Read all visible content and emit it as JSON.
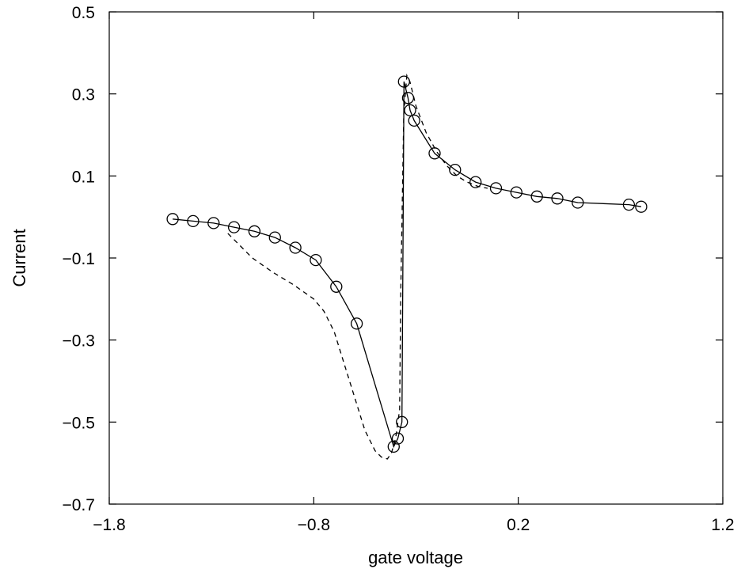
{
  "chart_data": {
    "type": "line",
    "title": "",
    "xlabel": "gate voltage",
    "ylabel": "Current",
    "xlim": [
      -1.8,
      1.2
    ],
    "ylim": [
      -0.7,
      0.5
    ],
    "xticks": [
      "−1.8",
      "−0.8",
      "0.2",
      "1.2"
    ],
    "yticks": [
      "0.5",
      "0.3",
      "0.1",
      "−0.1",
      "−0.3",
      "−0.5",
      "−0.7"
    ],
    "xtick_values": [
      -1.8,
      -0.8,
      0.2,
      1.2
    ],
    "ytick_values": [
      0.5,
      0.3,
      0.1,
      -0.1,
      -0.3,
      -0.5,
      -0.7
    ],
    "grid": false,
    "legend": "none",
    "series": [
      {
        "style": "solid-with-circles",
        "color": "#000000",
        "x": [
          -1.49,
          -1.39,
          -1.29,
          -1.19,
          -1.09,
          -0.99,
          -0.89,
          -0.79,
          -0.69,
          -0.59,
          -0.409,
          -0.389,
          -0.369,
          -0.359,
          -0.339,
          -0.329,
          -0.309,
          -0.209,
          -0.109,
          -0.009,
          0.091,
          0.191,
          0.291,
          0.391,
          0.491,
          0.741,
          0.801
        ],
        "y": [
          -0.005,
          -0.01,
          -0.015,
          -0.025,
          -0.035,
          -0.05,
          -0.075,
          -0.105,
          -0.17,
          -0.26,
          -0.56,
          -0.54,
          -0.5,
          0.33,
          0.29,
          0.26,
          0.235,
          0.155,
          0.115,
          0.085,
          0.07,
          0.06,
          0.05,
          0.045,
          0.035,
          0.03,
          0.025
        ]
      },
      {
        "style": "dashed",
        "color": "#000000",
        "x": [
          -1.22,
          -1.1,
          -1.0,
          -0.9,
          -0.8,
          -0.75,
          -0.7,
          -0.65,
          -0.6,
          -0.55,
          -0.5,
          -0.47,
          -0.44,
          -0.42,
          -0.4,
          -0.38,
          -0.375,
          -0.36,
          -0.345,
          -0.33,
          -0.3,
          -0.25,
          -0.2,
          -0.15,
          -0.1,
          -0.05,
          0.0,
          0.05
        ],
        "y": [
          -0.04,
          -0.1,
          -0.135,
          -0.165,
          -0.2,
          -0.23,
          -0.28,
          -0.36,
          -0.44,
          -0.52,
          -0.57,
          -0.585,
          -0.59,
          -0.575,
          -0.54,
          -0.47,
          -0.2,
          0.25,
          0.345,
          0.33,
          0.27,
          0.205,
          0.16,
          0.125,
          0.1,
          0.085,
          0.075,
          0.07
        ]
      }
    ]
  }
}
